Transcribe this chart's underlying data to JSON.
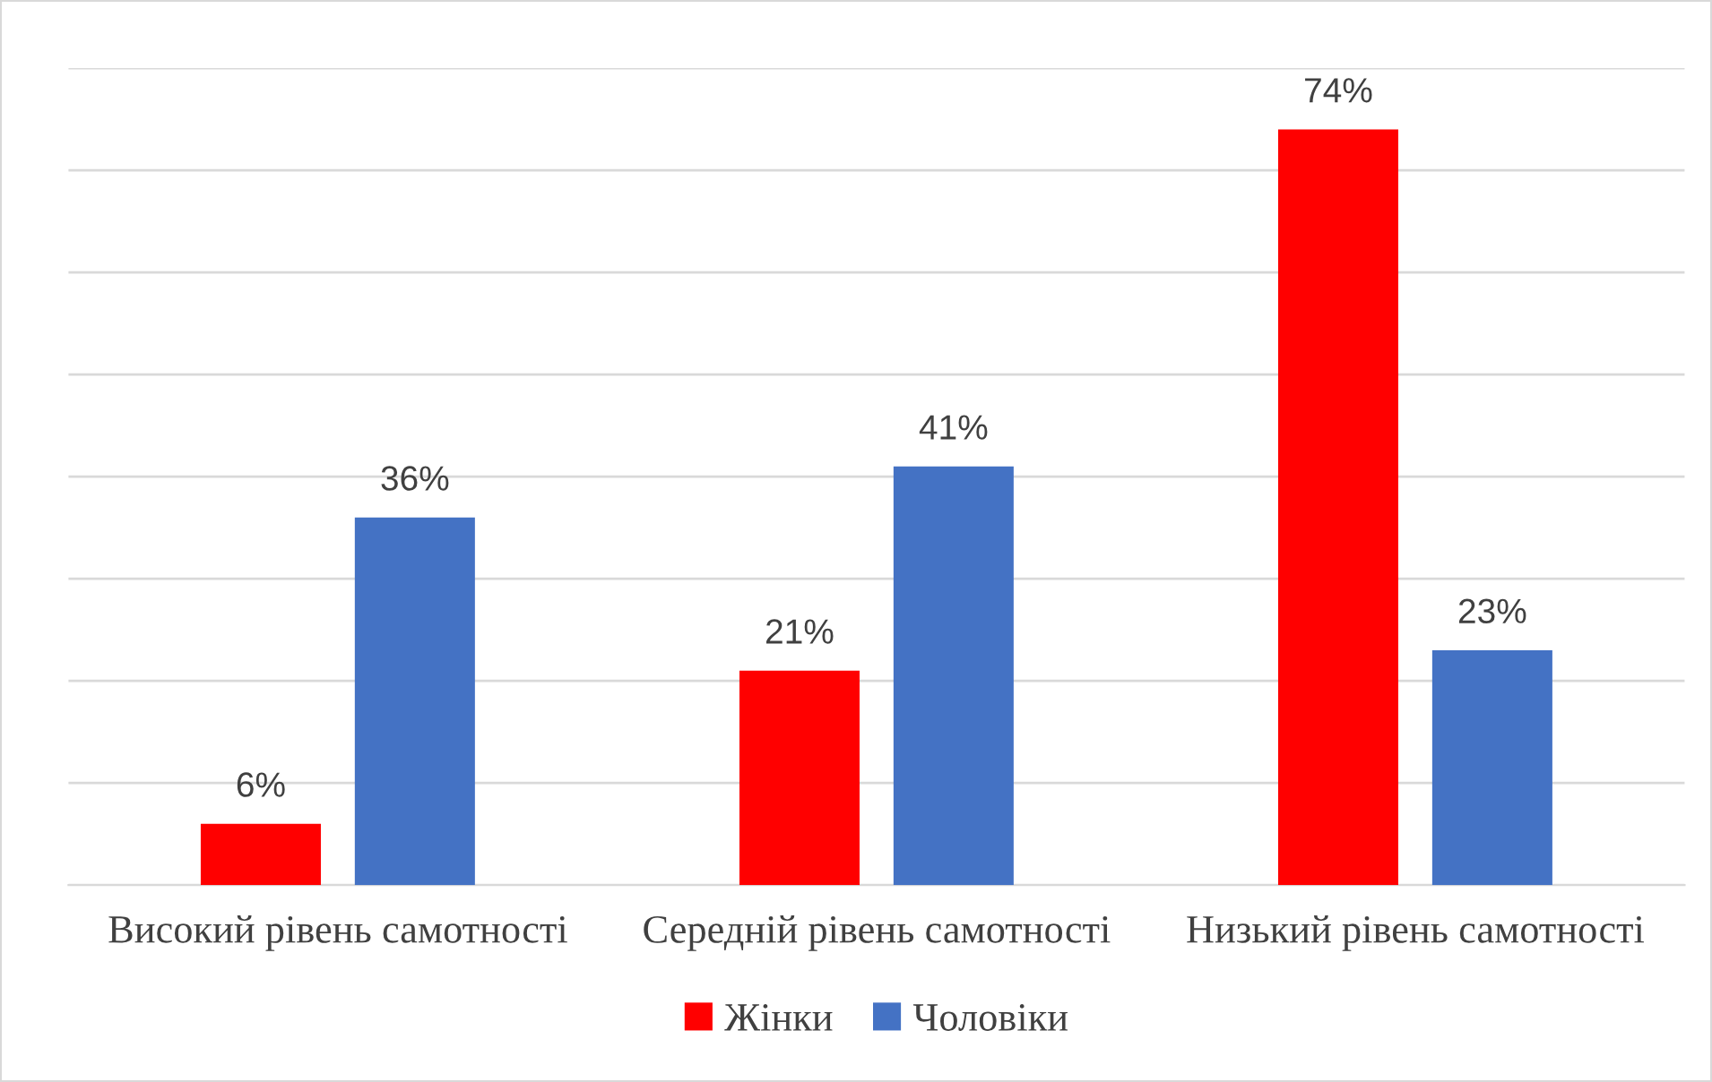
{
  "chart_data": {
    "type": "bar",
    "categories": [
      "Високий рівень самотності",
      "Середній рівень самотності",
      "Низький рівень самотності"
    ],
    "series": [
      {
        "name": "Жінки",
        "color": "#ff0000",
        "values": [
          6,
          21,
          74
        ],
        "value_labels": [
          "6%",
          "21%",
          "74%"
        ]
      },
      {
        "name": "Чоловіки",
        "color": "#4472c4",
        "values": [
          36,
          41,
          23
        ],
        "value_labels": [
          "36%",
          "41%",
          "23%"
        ]
      }
    ],
    "ylim": [
      0,
      80
    ],
    "yticks": [
      {
        "value": 0,
        "label": null
      },
      {
        "value": 10,
        "label": null
      },
      {
        "value": 20,
        "label": null
      },
      {
        "value": 30,
        "label": null
      },
      {
        "value": 40,
        "label": null
      },
      {
        "value": 50,
        "label": null
      },
      {
        "value": 60,
        "label": null
      },
      {
        "value": 70,
        "label": null
      },
      {
        "value": 80,
        "label": null
      }
    ],
    "tick_labels": "x",
    "grid": "y",
    "legend": "bottom"
  }
}
